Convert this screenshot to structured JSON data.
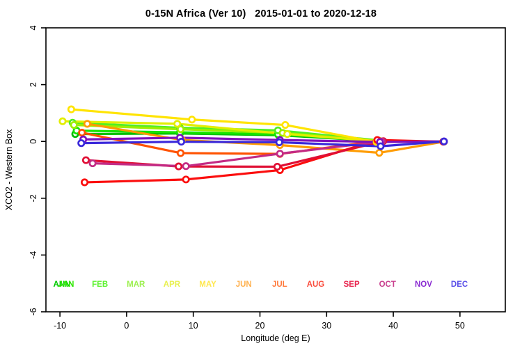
{
  "title": "0-15N Africa (Ver 10)   2015-01-01 to 2020-12-18",
  "chart_data": {
    "type": "line",
    "title": "0-15N Africa (Ver 10)   2015-01-01 to 2020-12-18",
    "xlabel": "Longitude (deg E)",
    "ylabel": "XCO2 - Western Box",
    "xlim": [
      -12.1,
      56.8
    ],
    "ylim": [
      -6,
      4
    ],
    "x_ticks": [
      -10,
      0,
      10,
      20,
      30,
      40,
      50
    ],
    "y_ticks": [
      4,
      2,
      0,
      -2,
      -4,
      -6
    ],
    "grid": false,
    "marker": "open-circle",
    "legend_position": "bottom-inside",
    "axis_color": "#000000",
    "background_color": "#ffffff",
    "series": [
      {
        "name": "ANN",
        "color": "#00be00",
        "points": [
          [
            -7.7,
            0.26
          ],
          [
            8.0,
            0.28
          ],
          [
            22.8,
            0.22
          ],
          [
            37.6,
            0.02
          ]
        ]
      },
      {
        "name": "JAN",
        "color": "#14e400",
        "points": [
          [
            -7.5,
            0.38
          ],
          [
            8.0,
            0.32
          ],
          [
            22.7,
            0.25
          ],
          [
            37.6,
            0.04
          ]
        ]
      },
      {
        "name": "FEB",
        "color": "#50ee24",
        "points": [
          [
            -8.1,
            0.66
          ],
          [
            8.0,
            0.48
          ],
          [
            22.7,
            0.39
          ],
          [
            37.7,
            0.04
          ]
        ]
      },
      {
        "name": "MAR",
        "color": "#9eee00",
        "points": [
          [
            -7.9,
            0.58
          ],
          [
            8.1,
            0.43
          ],
          [
            23.4,
            0.3
          ],
          [
            37.9,
            0.02
          ]
        ]
      },
      {
        "name": "APR",
        "color": "#e2ee00",
        "points": [
          [
            -9.6,
            0.71
          ],
          [
            7.6,
            0.62
          ],
          [
            24.1,
            0.26
          ],
          [
            38.0,
            0.0
          ]
        ]
      },
      {
        "name": "MAY",
        "color": "#ffe400",
        "points": [
          [
            -8.3,
            1.13
          ],
          [
            9.8,
            0.77
          ],
          [
            23.8,
            0.58
          ],
          [
            37.5,
            -0.02
          ]
        ]
      },
      {
        "name": "JUN",
        "color": "#ff9c00",
        "points": [
          [
            -5.9,
            0.62
          ],
          [
            8.3,
            0.05
          ],
          [
            23.0,
            -0.13
          ],
          [
            37.9,
            -0.4
          ],
          [
            47.6,
            -0.01
          ]
        ]
      },
      {
        "name": "JUL",
        "color": "#ff5200",
        "points": [
          [
            -6.7,
            0.31
          ],
          [
            8.1,
            -0.41
          ],
          [
            23.0,
            -0.44
          ],
          [
            37.8,
            0.02
          ]
        ]
      },
      {
        "name": "AUG",
        "color": "#fb0e0e",
        "points": [
          [
            -6.3,
            -1.44
          ],
          [
            8.9,
            -1.34
          ],
          [
            23.0,
            -1.01
          ],
          [
            37.6,
            0.05
          ],
          [
            47.5,
            -0.01
          ]
        ]
      },
      {
        "name": "SEP",
        "color": "#e00f34",
        "points": [
          [
            -6.1,
            -0.66
          ],
          [
            7.8,
            -0.88
          ],
          [
            22.6,
            -0.89
          ],
          [
            38.5,
            0.01
          ]
        ]
      },
      {
        "name": "OCT",
        "color": "#c32b85",
        "points": [
          [
            -5.1,
            -0.77
          ],
          [
            8.9,
            -0.87
          ],
          [
            23.0,
            -0.43
          ],
          [
            38.3,
            0.0
          ]
        ]
      },
      {
        "name": "NOV",
        "color": "#7e12bc",
        "points": [
          [
            -6.5,
            0.07
          ],
          [
            8.0,
            0.13
          ],
          [
            23.0,
            0.05
          ],
          [
            38.0,
            -0.02
          ],
          [
            47.6,
            0.0
          ]
        ]
      },
      {
        "name": "DEC",
        "color": "#3a28da",
        "points": [
          [
            -6.8,
            -0.06
          ],
          [
            8.2,
            -0.01
          ],
          [
            22.9,
            -0.03
          ],
          [
            38.1,
            -0.17
          ],
          [
            47.6,
            0.0
          ]
        ]
      }
    ],
    "legend": [
      {
        "label": "ANN",
        "color": "#00c800",
        "slot": 0,
        "dx": -3
      },
      {
        "label": "JAN",
        "color": "#2ee800",
        "slot": 0,
        "dx": 3
      },
      {
        "label": "FEB",
        "color": "#5bf22e",
        "slot": 1,
        "dx": 0
      },
      {
        "label": "MAR",
        "color": "#9cf04f",
        "slot": 2,
        "dx": 0
      },
      {
        "label": "APR",
        "color": "#e8f04f",
        "slot": 3,
        "dx": 0
      },
      {
        "label": "MAY",
        "color": "#ffe84f",
        "slot": 4,
        "dx": 0
      },
      {
        "label": "JUN",
        "color": "#ffb14f",
        "slot": 5,
        "dx": 0
      },
      {
        "label": "JUL",
        "color": "#ff7a3d",
        "slot": 6,
        "dx": 0
      },
      {
        "label": "AUG",
        "color": "#fa4d3d",
        "slot": 7,
        "dx": 0
      },
      {
        "label": "SEP",
        "color": "#e8244d",
        "slot": 8,
        "dx": 0
      },
      {
        "label": "OCT",
        "color": "#c9408e",
        "slot": 9,
        "dx": 0
      },
      {
        "label": "NOV",
        "color": "#8a2bd1",
        "slot": 10,
        "dx": 0
      },
      {
        "label": "DEC",
        "color": "#5a4fe8",
        "slot": 11,
        "dx": 0
      }
    ]
  }
}
